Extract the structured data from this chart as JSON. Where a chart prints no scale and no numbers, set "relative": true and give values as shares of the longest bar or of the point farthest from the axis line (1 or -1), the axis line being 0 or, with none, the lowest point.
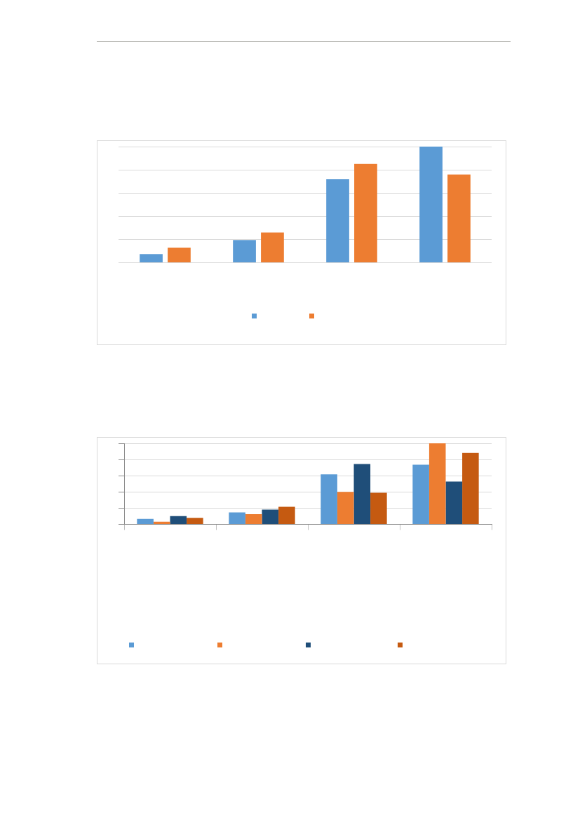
{
  "chart_data": [
    {
      "type": "bar",
      "relative": true,
      "categories": [
        null,
        null,
        null,
        null
      ],
      "grid": "y",
      "series": [
        {
          "color": "#5b9bd5",
          "values": [
            0.075,
            0.195,
            0.72,
            1
          ]
        },
        {
          "color": "#ed7d31",
          "values": [
            0.13,
            0.26,
            0.85,
            0.76
          ]
        }
      ]
    },
    {
      "type": "bar",
      "relative": true,
      "categories": [
        null,
        null,
        null,
        null
      ],
      "grid": "y",
      "series": [
        {
          "color": "#5b9bd5",
          "values": [
            0.068,
            0.149,
            0.618,
            0.736
          ]
        },
        {
          "color": "#ed7d31",
          "values": [
            0.034,
            0.127,
            0.401,
            1
          ]
        },
        {
          "color": "#1f4e79",
          "values": [
            0.102,
            0.183,
            0.745,
            0.528
          ]
        },
        {
          "color": "#c55a11",
          "values": [
            0.081,
            0.217,
            0.391,
            0.882
          ]
        }
      ]
    }
  ]
}
